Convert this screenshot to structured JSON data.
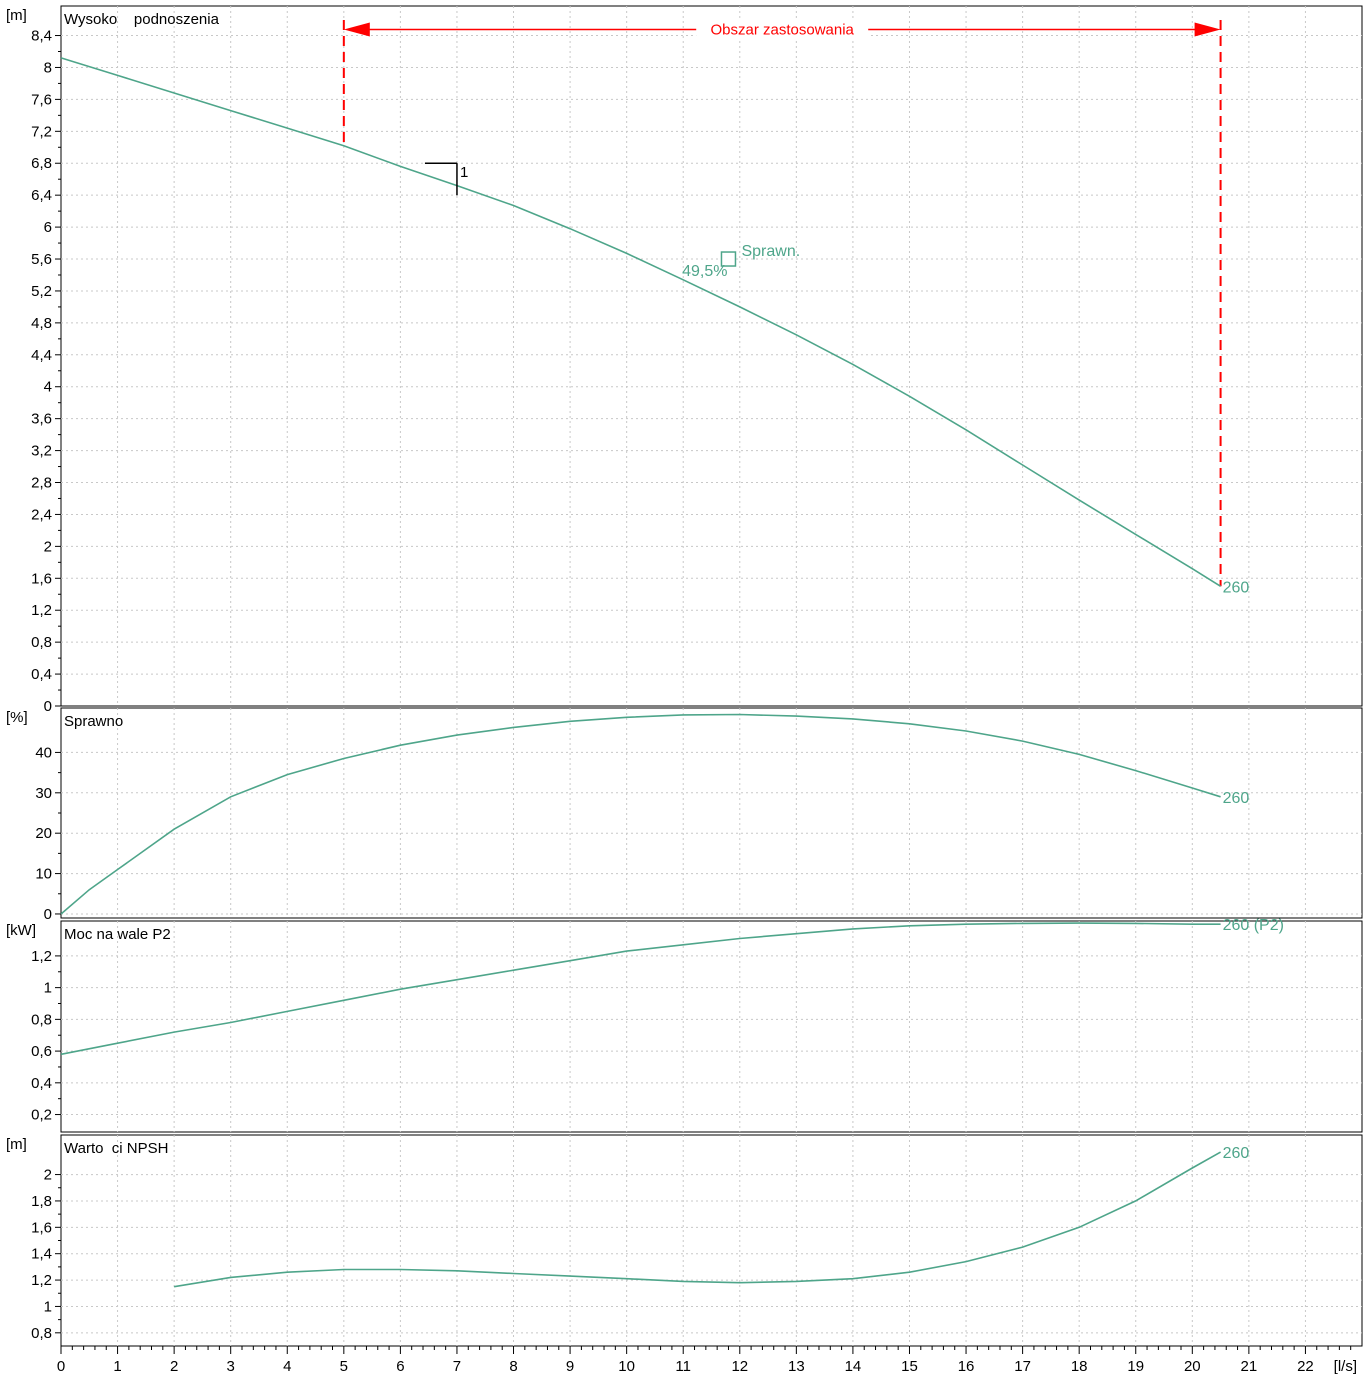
{
  "colors": {
    "curve": "#4ea58a",
    "range": "#ff0000",
    "grid": "#c8c8c8",
    "axis": "#000000",
    "background": "#ffffff"
  },
  "chart_data": {
    "type": "line",
    "x_unit": "[l/s]",
    "x_ticks": [
      0,
      1,
      2,
      3,
      4,
      5,
      6,
      7,
      8,
      9,
      10,
      11,
      12,
      13,
      14,
      15,
      16,
      17,
      18,
      19,
      20,
      21,
      22
    ],
    "xlim": [
      0,
      23.0
    ],
    "grid": true,
    "panels": [
      {
        "id": "head",
        "title": "Wysoko    podnoszenia",
        "unit": "[m]",
        "ylim": [
          0,
          8.77
        ],
        "y_ticks": [
          "0",
          "0,4",
          "0,8",
          "1,2",
          "1,6",
          "2",
          "2,4",
          "2,8",
          "3,2",
          "3,6",
          "4",
          "4,4",
          "4,8",
          "5,2",
          "5,6",
          "6",
          "6,4",
          "6,8",
          "7,2",
          "7,6",
          "8",
          "8,4"
        ],
        "series": [
          {
            "name": "260",
            "x": [
              0,
              1,
              2,
              3,
              4,
              5,
              6,
              7,
              8,
              9,
              10,
              11,
              12,
              13,
              14,
              15,
              16,
              17,
              18,
              19,
              20,
              20.5
            ],
            "y": [
              8.12,
              7.9,
              7.68,
              7.46,
              7.24,
              7.02,
              6.76,
              6.52,
              6.27,
              5.98,
              5.67,
              5.34,
              5.0,
              4.65,
              4.28,
              3.88,
              3.46,
              3.02,
              2.58,
              2.15,
              1.72,
              1.5
            ]
          }
        ],
        "application_range": {
          "label": "Obszar zastosowania",
          "x_start": 5.0,
          "x_end": 20.5
        },
        "operating_point": {
          "label": "1",
          "x": 7.0,
          "y": 6.8
        },
        "efficiency_marker": {
          "label": "Sprawn.",
          "value_label": "49,5%",
          "x": 11.8,
          "y": 5.6
        }
      },
      {
        "id": "efficiency",
        "title": "Sprawno",
        "unit": "[%]",
        "ylim": [
          -1,
          51
        ],
        "y_ticks": [
          "0",
          "10",
          "20",
          "30",
          "40"
        ],
        "series": [
          {
            "name": "260",
            "x": [
              0,
              0.5,
              1,
              2,
              3,
              4,
              5,
              6,
              7,
              8,
              9,
              10,
              11,
              12,
              13,
              14,
              15,
              16,
              17,
              18,
              19,
              20,
              20.5
            ],
            "y": [
              0,
              6,
              11,
              21,
              29,
              34.5,
              38.5,
              41.8,
              44.3,
              46.2,
              47.7,
              48.7,
              49.3,
              49.4,
              49.0,
              48.3,
              47.1,
              45.3,
              42.8,
              39.5,
              35.5,
              31.2,
              29
            ]
          }
        ]
      },
      {
        "id": "power",
        "title": "Moc na wale P2",
        "unit": "[kW]",
        "ylim": [
          0.09,
          1.42
        ],
        "y_ticks": [
          "0,2",
          "0,4",
          "0,6",
          "0,8",
          "1",
          "1,2"
        ],
        "series": [
          {
            "name": "260 (P2)",
            "x": [
              0,
              1,
              2,
              3,
              4,
              5,
              6,
              7,
              8,
              9,
              10,
              11,
              12,
              13,
              14,
              15,
              16,
              17,
              18,
              19,
              20,
              20.5
            ],
            "y": [
              0.58,
              0.65,
              0.72,
              0.78,
              0.85,
              0.92,
              0.99,
              1.05,
              1.11,
              1.17,
              1.23,
              1.27,
              1.31,
              1.34,
              1.37,
              1.39,
              1.4,
              1.405,
              1.407,
              1.405,
              1.4,
              1.4
            ]
          }
        ]
      },
      {
        "id": "npsh",
        "title": "Warto  ci NPSH",
        "unit": "[m]",
        "ylim": [
          0.7,
          2.3
        ],
        "y_ticks": [
          "0,8",
          "1",
          "1,2",
          "1,4",
          "1,6",
          "1,8",
          "2"
        ],
        "series": [
          {
            "name": "260",
            "x": [
              2,
              3,
              4,
              5,
              6,
              7,
              8,
              9,
              10,
              11,
              12,
              13,
              14,
              15,
              16,
              17,
              18,
              19,
              20,
              20.5
            ],
            "y": [
              1.15,
              1.22,
              1.26,
              1.28,
              1.28,
              1.27,
              1.25,
              1.23,
              1.21,
              1.19,
              1.18,
              1.19,
              1.21,
              1.26,
              1.34,
              1.45,
              1.6,
              1.8,
              2.05,
              2.17
            ]
          }
        ]
      }
    ]
  }
}
